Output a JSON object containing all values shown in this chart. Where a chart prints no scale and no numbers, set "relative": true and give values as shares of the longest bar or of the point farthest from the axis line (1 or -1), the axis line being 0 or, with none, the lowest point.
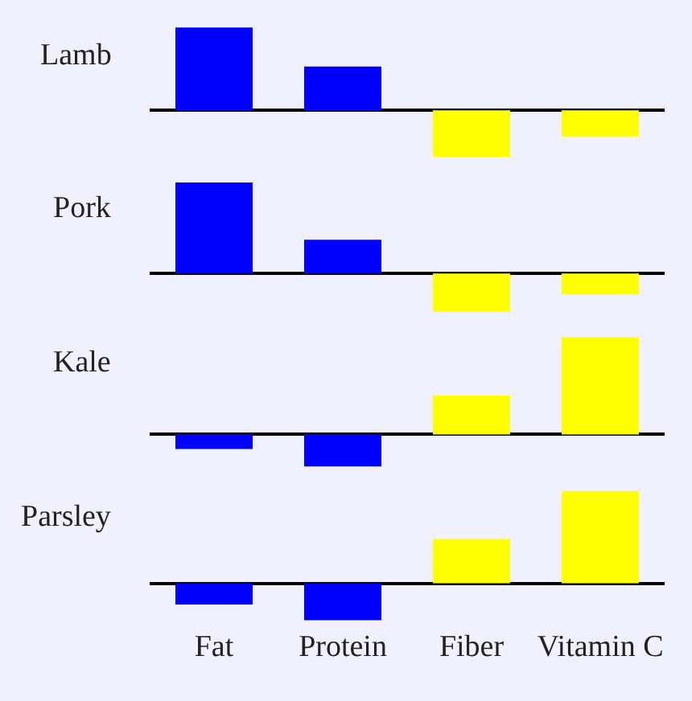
{
  "chart_data": [
    {
      "type": "bar",
      "title": "Lamb",
      "relative": true,
      "categories": [
        "Fat",
        "Protein",
        "Fiber",
        "Vitamin C"
      ],
      "values": [
        1,
        0.53,
        -0.56,
        -0.32
      ],
      "colors": [
        "#0000ff",
        "#0000ff",
        "#ffff00",
        "#ffff00"
      ],
      "tick_labels": false
    },
    {
      "type": "bar",
      "title": "Pork",
      "relative": true,
      "categories": [
        "Fat",
        "Protein",
        "Fiber",
        "Vitamin C"
      ],
      "values": [
        1,
        0.37,
        -0.42,
        -0.23
      ],
      "colors": [
        "#0000ff",
        "#0000ff",
        "#ffff00",
        "#ffff00"
      ],
      "tick_labels": false
    },
    {
      "type": "bar",
      "title": "Kale",
      "relative": true,
      "categories": [
        "Fat",
        "Protein",
        "Fiber",
        "Vitamin C"
      ],
      "values": [
        -0.15,
        -0.33,
        0.4,
        1
      ],
      "colors": [
        "#0000ff",
        "#0000ff",
        "#ffff00",
        "#ffff00"
      ],
      "tick_labels": false
    },
    {
      "type": "bar",
      "title": "Parsley",
      "relative": true,
      "categories": [
        "Fat",
        "Protein",
        "Fiber",
        "Vitamin C"
      ],
      "values": [
        -0.23,
        -0.4,
        0.48,
        1
      ],
      "colors": [
        "#0000ff",
        "#0000ff",
        "#ffff00",
        "#ffff00"
      ],
      "tick_labels": "x"
    }
  ]
}
